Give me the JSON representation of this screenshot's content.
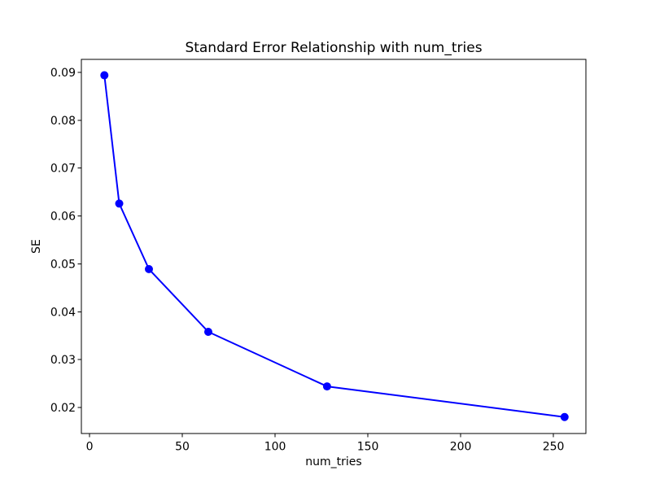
{
  "chart_data": {
    "type": "line",
    "title": "Standard Error Relationship with num_tries",
    "xlabel": "num_tries",
    "ylabel": "SE",
    "x": [
      8,
      16,
      32,
      64,
      128,
      256
    ],
    "y": [
      0.0894,
      0.0626,
      0.0489,
      0.0358,
      0.0244,
      0.018
    ],
    "series": [
      {
        "name": "SE",
        "x": [
          8,
          16,
          32,
          64,
          128,
          256
        ],
        "y": [
          0.0894,
          0.0626,
          0.0489,
          0.0358,
          0.0244,
          0.018
        ]
      }
    ],
    "xticks": [
      0,
      50,
      100,
      150,
      200,
      250
    ],
    "yticks": [
      0.02,
      0.03,
      0.04,
      0.05,
      0.06,
      0.07,
      0.08,
      0.09
    ],
    "xlim": [
      -4.4,
      267.5
    ],
    "ylim": [
      0.01456,
      0.09272
    ],
    "grid": false,
    "legend_position": "none",
    "line_color": "#0000ff",
    "marker": "o",
    "marker_color": "#0000ff",
    "axis_color": "#000000",
    "text_color": "#000000",
    "background_color": "#ffffff"
  }
}
